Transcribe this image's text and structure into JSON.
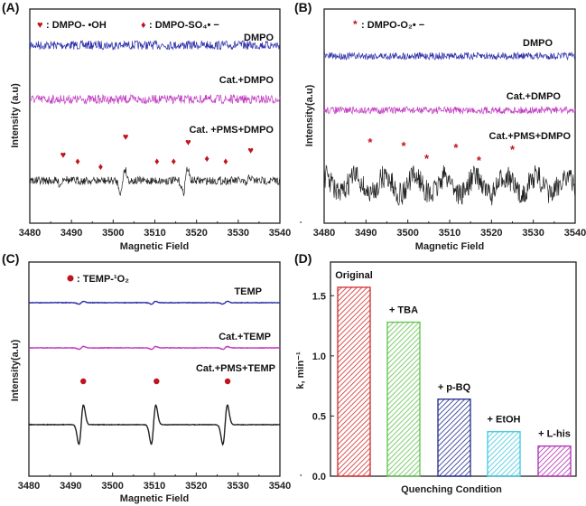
{
  "chart_data": [
    {
      "panel": "(A)",
      "type": "line",
      "xlabel": "Magnetic Field",
      "ylabel": "Intensity (a.u)",
      "xlim": [
        3480,
        3540
      ],
      "xticks": [
        3480,
        3490,
        3500,
        3510,
        3520,
        3530,
        3540
      ],
      "series": [
        {
          "name": "DMPO",
          "color": "#2b2fa8"
        },
        {
          "name": "Cat.+DMPO",
          "color": "#c13cc1"
        },
        {
          "name": "Cat. +PMS+DMPO",
          "color": "#222222"
        }
      ],
      "legend": [
        {
          "symbol": "heart",
          "text": ": DMPO- •OH"
        },
        {
          "symbol": "diamond",
          "text": ": DMPO-SO₄• −"
        }
      ],
      "markers": {
        "heart": [
          3488,
          3503,
          3518,
          3533
        ],
        "diamond": [
          3491.5,
          3497,
          3510.5,
          3514.5,
          3522.5,
          3527
        ]
      }
    },
    {
      "panel": "(B)",
      "type": "line",
      "xlabel": "Magnetic Field",
      "ylabel": "Intensity(a.u)",
      "xlim": [
        3480,
        3540
      ],
      "xticks": [
        3480,
        3490,
        3500,
        3510,
        3520,
        3530,
        3540
      ],
      "series": [
        {
          "name": "DMPO",
          "color": "#2b2fa8"
        },
        {
          "name": "Cat.+DMPO",
          "color": "#c13cc1"
        },
        {
          "name": "Cat.+PMS+DMPO",
          "color": "#222222"
        }
      ],
      "legend": [
        {
          "symbol": "star",
          "text": ": DMPO-O₂• −"
        }
      ],
      "markers": {
        "star": [
          3491,
          3499,
          3504.5,
          3511.5,
          3517,
          3525
        ]
      }
    },
    {
      "panel": "(C)",
      "type": "line",
      "xlabel": "Magnetic Field",
      "ylabel": "Intensity(a.u)",
      "xlim": [
        3480,
        3540
      ],
      "xticks": [
        3480,
        3490,
        3500,
        3510,
        3520,
        3530,
        3540
      ],
      "series": [
        {
          "name": "TEMP",
          "color": "#2b2fa8"
        },
        {
          "name": "Cat.+TEMP",
          "color": "#c13cc1"
        },
        {
          "name": "Cat.+PMS+TEMP",
          "color": "#222222"
        }
      ],
      "legend": [
        {
          "symbol": "circle",
          "text": ": TEMP-¹O₂"
        }
      ],
      "markers": {
        "circle": [
          3493,
          3510.5,
          3527.5
        ]
      }
    },
    {
      "panel": "(D)",
      "type": "bar",
      "xlabel": "Quenching Condition",
      "ylabel": "k, min⁻¹",
      "ylim": [
        0,
        1.78
      ],
      "yticks": [
        "0.0",
        "0.5",
        "1.0",
        "1.5"
      ],
      "categories": [
        "Original",
        "+ TBA",
        "+ p-BQ",
        "+ EtOH",
        "+ L-his"
      ],
      "values": [
        1.57,
        1.28,
        0.64,
        0.37,
        0.25
      ],
      "colors": [
        "#d22a2a",
        "#5cc34a",
        "#1f2a8c",
        "#3cc8e0",
        "#b02bb5"
      ]
    }
  ],
  "accent": "#c0141c"
}
